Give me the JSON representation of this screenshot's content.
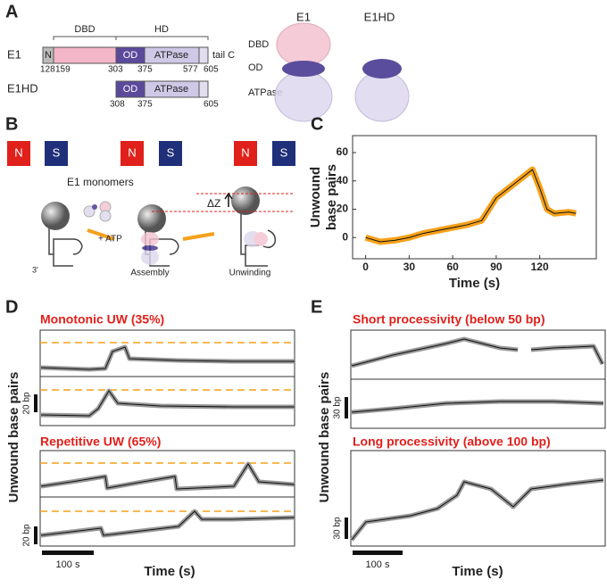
{
  "panel_a": {
    "letter": "A",
    "rows": [
      {
        "name": "E1",
        "domains": [
          "N",
          "OD",
          "ATPase"
        ],
        "tail": "tail C",
        "positions": [
          "128",
          "159",
          "303",
          "375",
          "577",
          "605"
        ]
      },
      {
        "name": "E1HD",
        "domains": [
          "OD",
          "ATPase"
        ],
        "positions": [
          "308",
          "375",
          "605"
        ]
      }
    ],
    "brackets": [
      "DBD",
      "HD"
    ],
    "structure_titles": [
      "E1",
      "E1HD"
    ],
    "structure_labels": [
      "DBD",
      "OD",
      "ATPase"
    ]
  },
  "panel_b": {
    "letter": "B",
    "magnets": [
      "N",
      "S"
    ],
    "monomers": "E1 monomers",
    "atp": "+ ATP",
    "steps": [
      "Assembly",
      "Unwinding"
    ],
    "end": "3'",
    "dz": "ΔZ"
  },
  "panel_c": {
    "letter": "C",
    "chart_data": {
      "type": "line",
      "xlabel": "Time (s)",
      "ylabel": [
        "Unwound",
        "base pairs"
      ],
      "x": [
        0,
        10,
        20,
        30,
        40,
        50,
        60,
        70,
        80,
        90,
        100,
        110,
        115,
        120,
        125,
        130,
        140,
        145
      ],
      "series": [
        {
          "values": [
            0,
            -3,
            -2,
            0,
            3,
            5,
            7,
            9,
            12,
            28,
            36,
            44,
            48,
            35,
            20,
            17,
            18,
            17
          ],
          "color": "#f5a11a"
        }
      ],
      "xlim": [
        -9,
        159
      ],
      "ylim": [
        -15,
        72
      ],
      "xticks": [
        0,
        30,
        60,
        90,
        120
      ],
      "yticks": [
        0,
        20,
        40,
        60
      ]
    }
  },
  "panel_d": {
    "letter": "D",
    "titles": [
      "Monotonic UW (35%)",
      "Repetitive UW (65%)"
    ],
    "ylabel": "Unwound base pairs",
    "scale_y": [
      "20 bp",
      "20 bp"
    ],
    "scale_x": "100 s",
    "xlabel": "Time (s)"
  },
  "panel_e": {
    "letter": "E",
    "titles": [
      "Short processivity (below 50 bp)",
      "Long processivity (above 100 bp)"
    ],
    "ylabel": "Unwound base pairs",
    "scale_y": [
      "30 bp",
      "30 bp"
    ],
    "scale_x": "100 s",
    "xlabel": "Time (s)"
  }
}
